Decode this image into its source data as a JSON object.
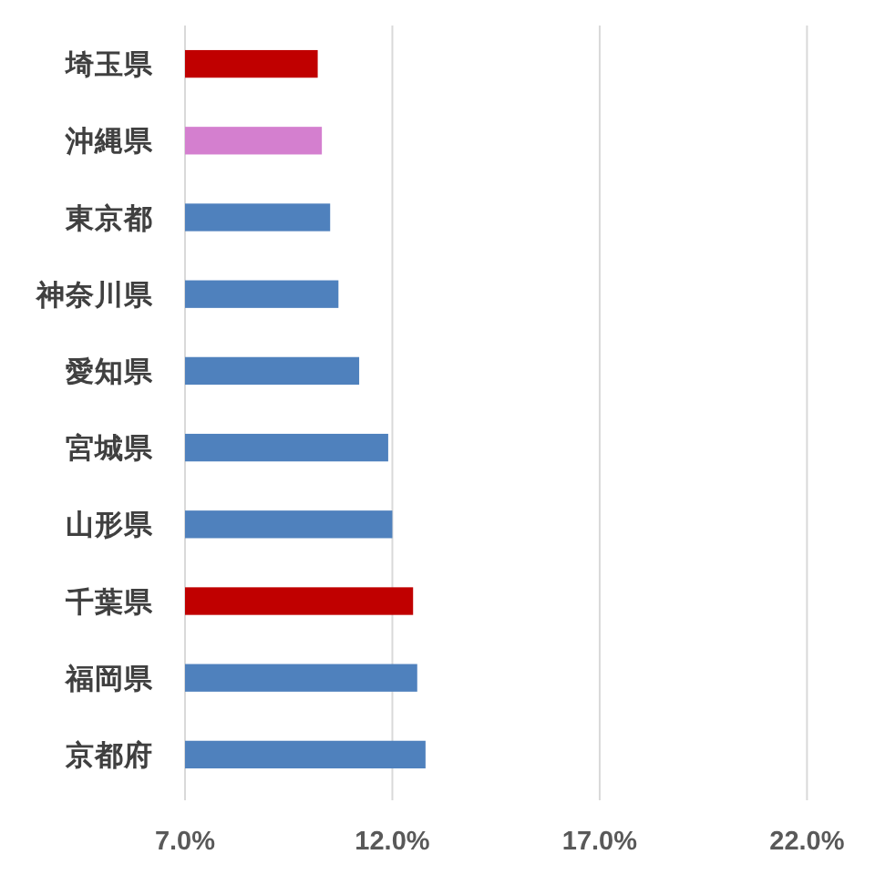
{
  "chart_data": {
    "type": "bar",
    "orientation": "horizontal",
    "categories": [
      "埼玉県",
      "沖縄県",
      "東京都",
      "神奈川県",
      "愛知県",
      "宮城県",
      "山形県",
      "千葉県",
      "福岡県",
      "京都府"
    ],
    "values": [
      10.2,
      10.3,
      10.5,
      10.7,
      11.2,
      11.9,
      12.0,
      12.5,
      12.6,
      12.8
    ],
    "colors": [
      "#c00000",
      "#d47fcf",
      "#4f81bd",
      "#4f81bd",
      "#4f81bd",
      "#4f81bd",
      "#4f81bd",
      "#c00000",
      "#4f81bd",
      "#4f81bd"
    ],
    "xlim": [
      7,
      22
    ],
    "xticks": [
      {
        "value": 7,
        "label": "7.0%"
      },
      {
        "value": 12,
        "label": "12.0%"
      },
      {
        "value": 17,
        "label": "17.0%"
      },
      {
        "value": 22,
        "label": "22.0%"
      }
    ],
    "grid": "x"
  }
}
